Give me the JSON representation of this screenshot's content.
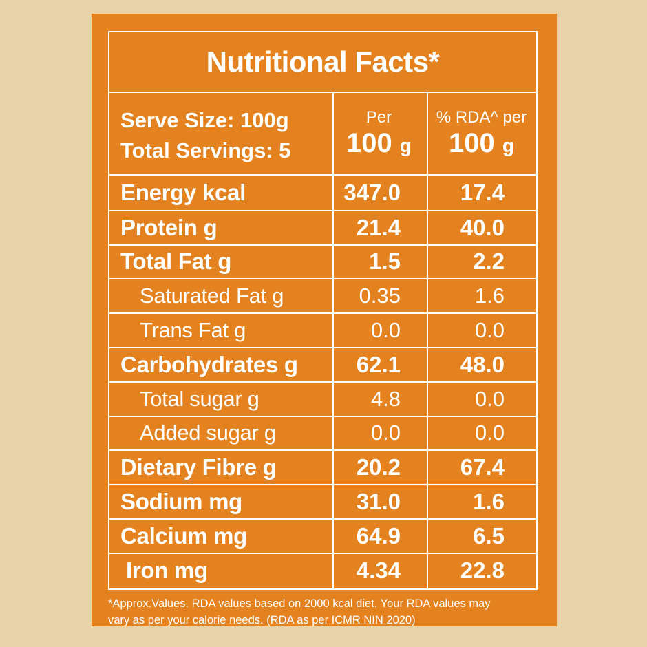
{
  "title": "Nutritional Facts*",
  "header": {
    "serve_size": "Serve Size: 100g",
    "total_servings": "Total Servings: 5",
    "col1_top": "Per",
    "col1_value": "100",
    "col1_unit": "g",
    "col2_top": "% RDA^ per",
    "col2_value": "100",
    "col2_unit": "g"
  },
  "rows": [
    {
      "name": "Energy kcal",
      "per": "347.0",
      "rda": "17.4"
    },
    {
      "name": "Protein g",
      "per": "21.4",
      "rda": "40.0"
    },
    {
      "name": "Total Fat g",
      "per": "1.5",
      "rda": "2.2"
    },
    {
      "name": "Saturated Fat g",
      "per": "0.35",
      "rda": "1.6"
    },
    {
      "name": "Trans Fat g",
      "per": "0.0",
      "rda": "0.0"
    },
    {
      "name": "Carbohydrates g",
      "per": "62.1",
      "rda": "48.0"
    },
    {
      "name": "Total sugar g",
      "per": "4.8",
      "rda": "0.0"
    },
    {
      "name": "Added sugar g",
      "per": "0.0",
      "rda": "0.0"
    },
    {
      "name": "Dietary Fibre g",
      "per": "20.2",
      "rda": "67.4"
    },
    {
      "name": "Sodium mg",
      "per": "31.0",
      "rda": "1.6"
    },
    {
      "name": "Calcium mg",
      "per": "64.9",
      "rda": "6.5"
    },
    {
      "name": "Iron mg",
      "per": "4.34",
      "rda": "22.8"
    }
  ],
  "footnote_line1": "*Approx.Values. RDA values based on 2000 kcal diet. Your RDA values may",
  "footnote_line2": "vary as per your calorie needs. (RDA as per ICMR NIN 2020)",
  "colors": {
    "background": "#E8D3A8",
    "card": "#E4821F",
    "text": "#FFFFFF"
  }
}
